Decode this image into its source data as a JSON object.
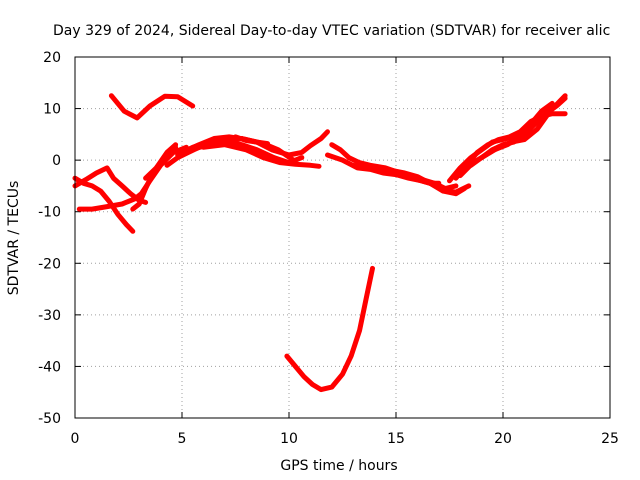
{
  "chart_data": {
    "type": "line",
    "title": "Day 329 of 2024, Sidereal Day-to-day VTEC variation (SDTVAR) for receiver alic",
    "xlabel": "GPS time / hours",
    "ylabel": "SDTVAR / TECUs",
    "xlim": [
      0,
      25
    ],
    "ylim": [
      -50,
      20
    ],
    "xticks": [
      0,
      5,
      10,
      15,
      20,
      25
    ],
    "yticks": [
      -50,
      -40,
      -30,
      -20,
      -10,
      0,
      10,
      20
    ],
    "grid": true,
    "color": "#ff0000",
    "series": [
      {
        "x": [
          1.7,
          2.3,
          2.9,
          3.5,
          4.2,
          4.8,
          5.5
        ],
        "y": [
          12.5,
          9.5,
          8.2,
          10.5,
          12.4,
          12.3,
          10.5
        ]
      },
      {
        "x": [
          0.0,
          0.4,
          0.8,
          1.2,
          1.6,
          2.0,
          2.4,
          2.7
        ],
        "y": [
          -3.5,
          -4.5,
          -5.0,
          -6.0,
          -8.0,
          -10.5,
          -12.5,
          -13.8
        ]
      },
      {
        "x": [
          0.0,
          0.5,
          1.0,
          1.5,
          1.8,
          2.2,
          2.6,
          3.0,
          3.3
        ],
        "y": [
          -5.0,
          -3.8,
          -2.5,
          -1.5,
          -3.5,
          -5.0,
          -6.5,
          -7.8,
          -8.2
        ]
      },
      {
        "x": [
          0.2,
          0.8,
          1.5,
          2.2,
          2.8,
          3.1,
          3.5,
          4.0,
          4.6,
          5.2
        ],
        "y": [
          -9.5,
          -9.5,
          -9.0,
          -8.5,
          -7.5,
          -6.5,
          -4.0,
          -1.0,
          1.5,
          2.5
        ]
      },
      {
        "x": [
          2.7,
          3.0,
          3.3,
          3.7,
          4.2,
          4.7
        ],
        "y": [
          -9.5,
          -8.5,
          -5.5,
          -2.0,
          0.5,
          2.5
        ]
      },
      {
        "x": [
          3.3,
          3.8,
          4.3,
          4.7
        ],
        "y": [
          -3.5,
          -1.5,
          1.5,
          3.0
        ]
      },
      {
        "x": [
          4.3,
          4.8,
          5.3,
          5.8,
          6.3,
          6.8,
          7.3,
          7.8
        ],
        "y": [
          -1.0,
          0.5,
          1.5,
          2.5,
          3.0,
          3.5,
          3.8,
          4.2
        ]
      },
      {
        "x": [
          4.8,
          5.5,
          6.2,
          7.0,
          7.8,
          8.5,
          9.2,
          10.0,
          10.6,
          11.0,
          11.5,
          11.8
        ],
        "y": [
          1.0,
          2.5,
          3.5,
          4.0,
          4.2,
          3.5,
          2.0,
          1.0,
          1.5,
          2.8,
          4.2,
          5.5
        ]
      },
      {
        "x": [
          5.0,
          5.8,
          6.5,
          7.2,
          8.0,
          8.8,
          9.5,
          10.2
        ],
        "y": [
          1.5,
          3.0,
          4.2,
          4.5,
          4.0,
          3.2,
          2.0,
          0.0
        ]
      },
      {
        "x": [
          5.5,
          6.3,
          7.0,
          7.8,
          8.5,
          9.3,
          10.0,
          10.6
        ],
        "y": [
          2.0,
          3.2,
          3.6,
          3.0,
          2.0,
          0.5,
          -0.5,
          0.5
        ]
      },
      {
        "x": [
          6.0,
          7.0,
          8.0,
          8.8,
          9.6,
          10.3,
          11.0,
          11.4
        ],
        "y": [
          2.5,
          3.0,
          2.0,
          0.5,
          -0.5,
          -0.8,
          -1.0,
          -1.2
        ]
      },
      {
        "x": [
          7.5,
          8.0,
          8.5,
          9.0
        ],
        "y": [
          4.5,
          3.8,
          3.5,
          3.2
        ]
      },
      {
        "x": [
          11.8,
          12.5,
          13.2,
          13.8,
          14.4,
          15.0,
          15.6,
          16.2,
          16.6,
          17.0
        ],
        "y": [
          1.0,
          0.0,
          -1.5,
          -1.8,
          -2.5,
          -2.8,
          -3.5,
          -4.0,
          -4.5,
          -4.5
        ]
      },
      {
        "x": [
          12.0,
          12.4,
          12.8,
          13.3,
          13.8,
          14.5,
          15.2,
          16.0,
          16.8,
          17.3,
          17.8
        ],
        "y": [
          3.0,
          2.0,
          0.5,
          -0.5,
          -1.0,
          -1.5,
          -2.5,
          -3.5,
          -4.5,
          -5.5,
          -5.0
        ]
      },
      {
        "x": [
          13.0,
          13.6,
          14.2,
          14.8,
          15.4,
          16.0,
          16.6,
          17.2,
          17.8,
          18.2
        ],
        "y": [
          -1.0,
          -1.5,
          -1.8,
          -2.0,
          -2.5,
          -3.2,
          -4.5,
          -6.0,
          -6.5,
          -5.5
        ]
      },
      {
        "x": [
          16.0,
          16.6,
          17.2,
          17.8,
          18.4
        ],
        "y": [
          -3.8,
          -4.5,
          -5.8,
          -6.2,
          -5.0
        ]
      },
      {
        "x": [
          17.5,
          18.0,
          18.5,
          19.0,
          19.5,
          20.0,
          20.5,
          21.0
        ],
        "y": [
          -4.0,
          -1.5,
          0.5,
          2.0,
          3.5,
          4.0,
          4.5,
          5.5
        ]
      },
      {
        "x": [
          17.8,
          18.3,
          18.8,
          19.3,
          19.8,
          20.3,
          20.8,
          21.3,
          21.8,
          22.3,
          22.9
        ],
        "y": [
          -3.5,
          -1.0,
          1.5,
          3.0,
          4.0,
          4.5,
          5.5,
          7.5,
          8.5,
          9.0,
          9.0
        ]
      },
      {
        "x": [
          18.0,
          18.6,
          19.2,
          19.8,
          20.4,
          21.0,
          21.6,
          22.2,
          22.9
        ],
        "y": [
          -3.0,
          -0.5,
          1.0,
          2.5,
          3.5,
          4.0,
          6.0,
          9.5,
          12.5
        ]
      },
      {
        "x": [
          18.5,
          19.0,
          19.5,
          20.0,
          20.5,
          21.0,
          21.5,
          22.0,
          22.5,
          22.9
        ],
        "y": [
          -1.0,
          0.5,
          2.0,
          3.0,
          3.5,
          5.0,
          7.0,
          9.0,
          10.5,
          12.0
        ]
      },
      {
        "x": [
          19.0,
          19.6,
          20.2,
          20.8,
          21.3,
          21.8,
          22.3
        ],
        "y": [
          0.5,
          2.0,
          3.0,
          4.5,
          7.0,
          9.5,
          11.0
        ]
      },
      {
        "x": [
          9.9,
          10.3,
          10.7,
          11.1,
          11.5,
          12.0,
          12.5,
          12.9,
          13.3,
          13.6,
          13.9
        ],
        "y": [
          -38.0,
          -40.0,
          -42.0,
          -43.5,
          -44.5,
          -44.0,
          -41.5,
          -38.0,
          -33.0,
          -27.0,
          -21.0
        ]
      }
    ]
  }
}
